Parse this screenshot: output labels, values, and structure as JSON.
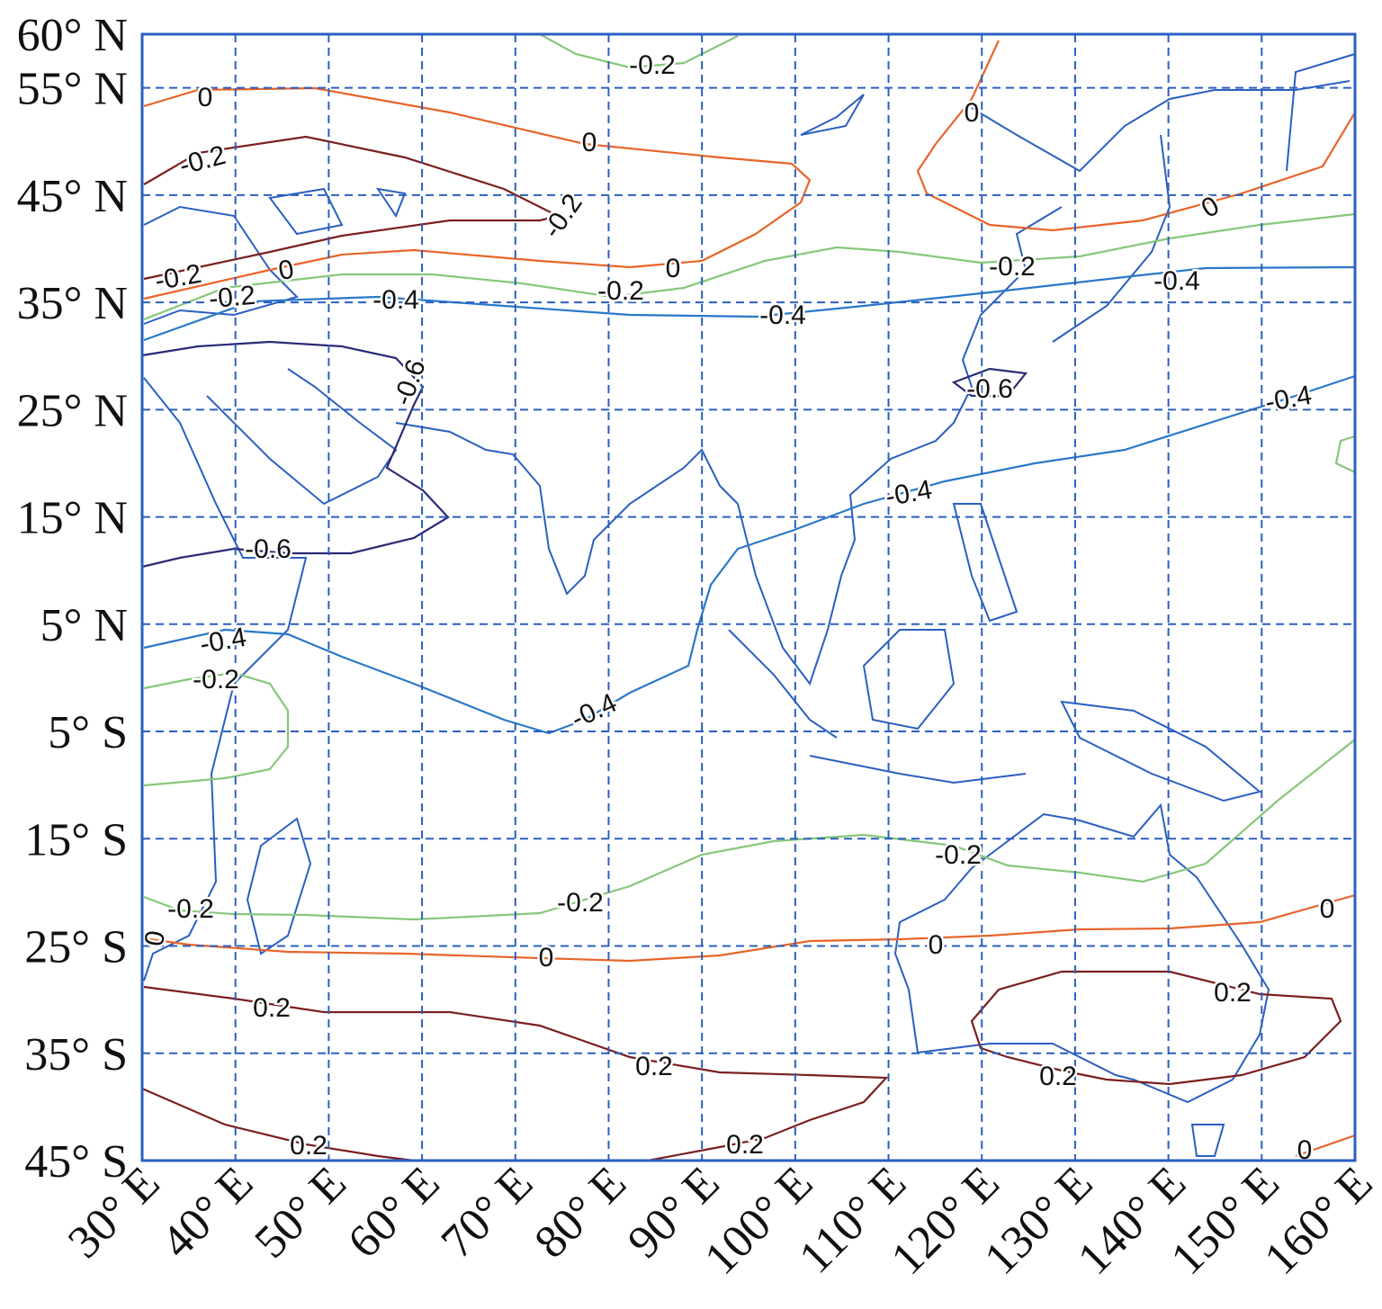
{
  "map": {
    "xlim": [
      30,
      160
    ],
    "ylim": [
      -45,
      60
    ],
    "xticks": [
      {
        "value": 30,
        "label": "30° E"
      },
      {
        "value": 40,
        "label": "40° E"
      },
      {
        "value": 50,
        "label": "50° E"
      },
      {
        "value": 60,
        "label": "60° E"
      },
      {
        "value": 70,
        "label": "70° E"
      },
      {
        "value": 80,
        "label": "80° E"
      },
      {
        "value": 90,
        "label": "90° E"
      },
      {
        "value": 100,
        "label": "100° E"
      },
      {
        "value": 110,
        "label": "110° E"
      },
      {
        "value": 120,
        "label": "120° E"
      },
      {
        "value": 130,
        "label": "130° E"
      },
      {
        "value": 140,
        "label": "140° E"
      },
      {
        "value": 150,
        "label": "150° E"
      },
      {
        "value": 160,
        "label": "160° E"
      }
    ],
    "yticks": [
      {
        "value": 60,
        "label": "60° N"
      },
      {
        "value": 55,
        "label": "55° N"
      },
      {
        "value": 45,
        "label": "45° N"
      },
      {
        "value": 35,
        "label": "35° N"
      },
      {
        "value": 25,
        "label": "25° N"
      },
      {
        "value": 15,
        "label": "15° N"
      },
      {
        "value": 5,
        "label": "5° N"
      },
      {
        "value": -5,
        "label": "5° S"
      },
      {
        "value": -15,
        "label": "15° S"
      },
      {
        "value": -25,
        "label": "25° S"
      },
      {
        "value": -35,
        "label": "35° S"
      },
      {
        "value": -45,
        "label": "45° S"
      }
    ],
    "grid": true,
    "contour_labels": [
      "-0.2",
      "0",
      "0",
      "-0.2",
      "-0.2",
      "0",
      "0",
      "-0.2",
      "0",
      "-0.2",
      "-0.4",
      "0",
      "-0.2",
      "-0.4",
      "-0.2",
      "-0.4",
      "-0.6",
      "-0.6",
      "-0.4",
      "-0.4",
      "-0.6",
      "-0.4",
      "-0.2",
      "-0.4",
      "-0.2",
      "-0.2",
      "-0.2",
      "0",
      "0",
      "0",
      "0",
      "0.2",
      "0.2",
      "0.2",
      "0.2",
      "0.2",
      "0.2",
      "0"
    ]
  }
}
